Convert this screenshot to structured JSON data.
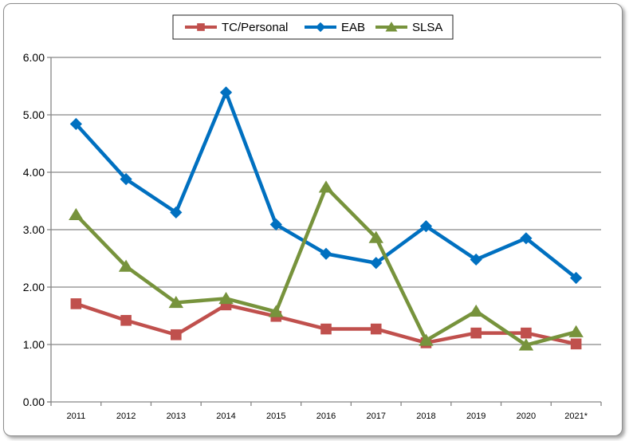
{
  "chart_data": {
    "type": "line",
    "categories": [
      "2011",
      "2012",
      "2013",
      "2014",
      "2015",
      "2016",
      "2017",
      "2018",
      "2019",
      "2020",
      "2021*"
    ],
    "ylim": [
      0,
      6
    ],
    "yticks": [
      "0.00",
      "1.00",
      "2.00",
      "3.00",
      "4.00",
      "5.00",
      "6.00"
    ],
    "grid": true,
    "legend_position": "top-center",
    "series": [
      {
        "name": "TC/Personal",
        "color": "#c0504d",
        "marker": "square",
        "values": [
          1.71,
          1.42,
          1.17,
          1.69,
          1.49,
          1.27,
          1.27,
          1.03,
          1.2,
          1.2,
          1.01
        ]
      },
      {
        "name": "EAB",
        "color": "#0070c0",
        "marker": "diamond",
        "values": [
          4.84,
          3.88,
          3.3,
          5.39,
          3.09,
          2.58,
          2.42,
          3.06,
          2.48,
          2.85,
          2.16
        ]
      },
      {
        "name": "SLSA",
        "color": "#77933c",
        "marker": "triangle",
        "values": [
          3.26,
          2.36,
          1.73,
          1.8,
          1.57,
          3.74,
          2.86,
          1.07,
          1.58,
          0.99,
          1.22
        ]
      }
    ]
  }
}
